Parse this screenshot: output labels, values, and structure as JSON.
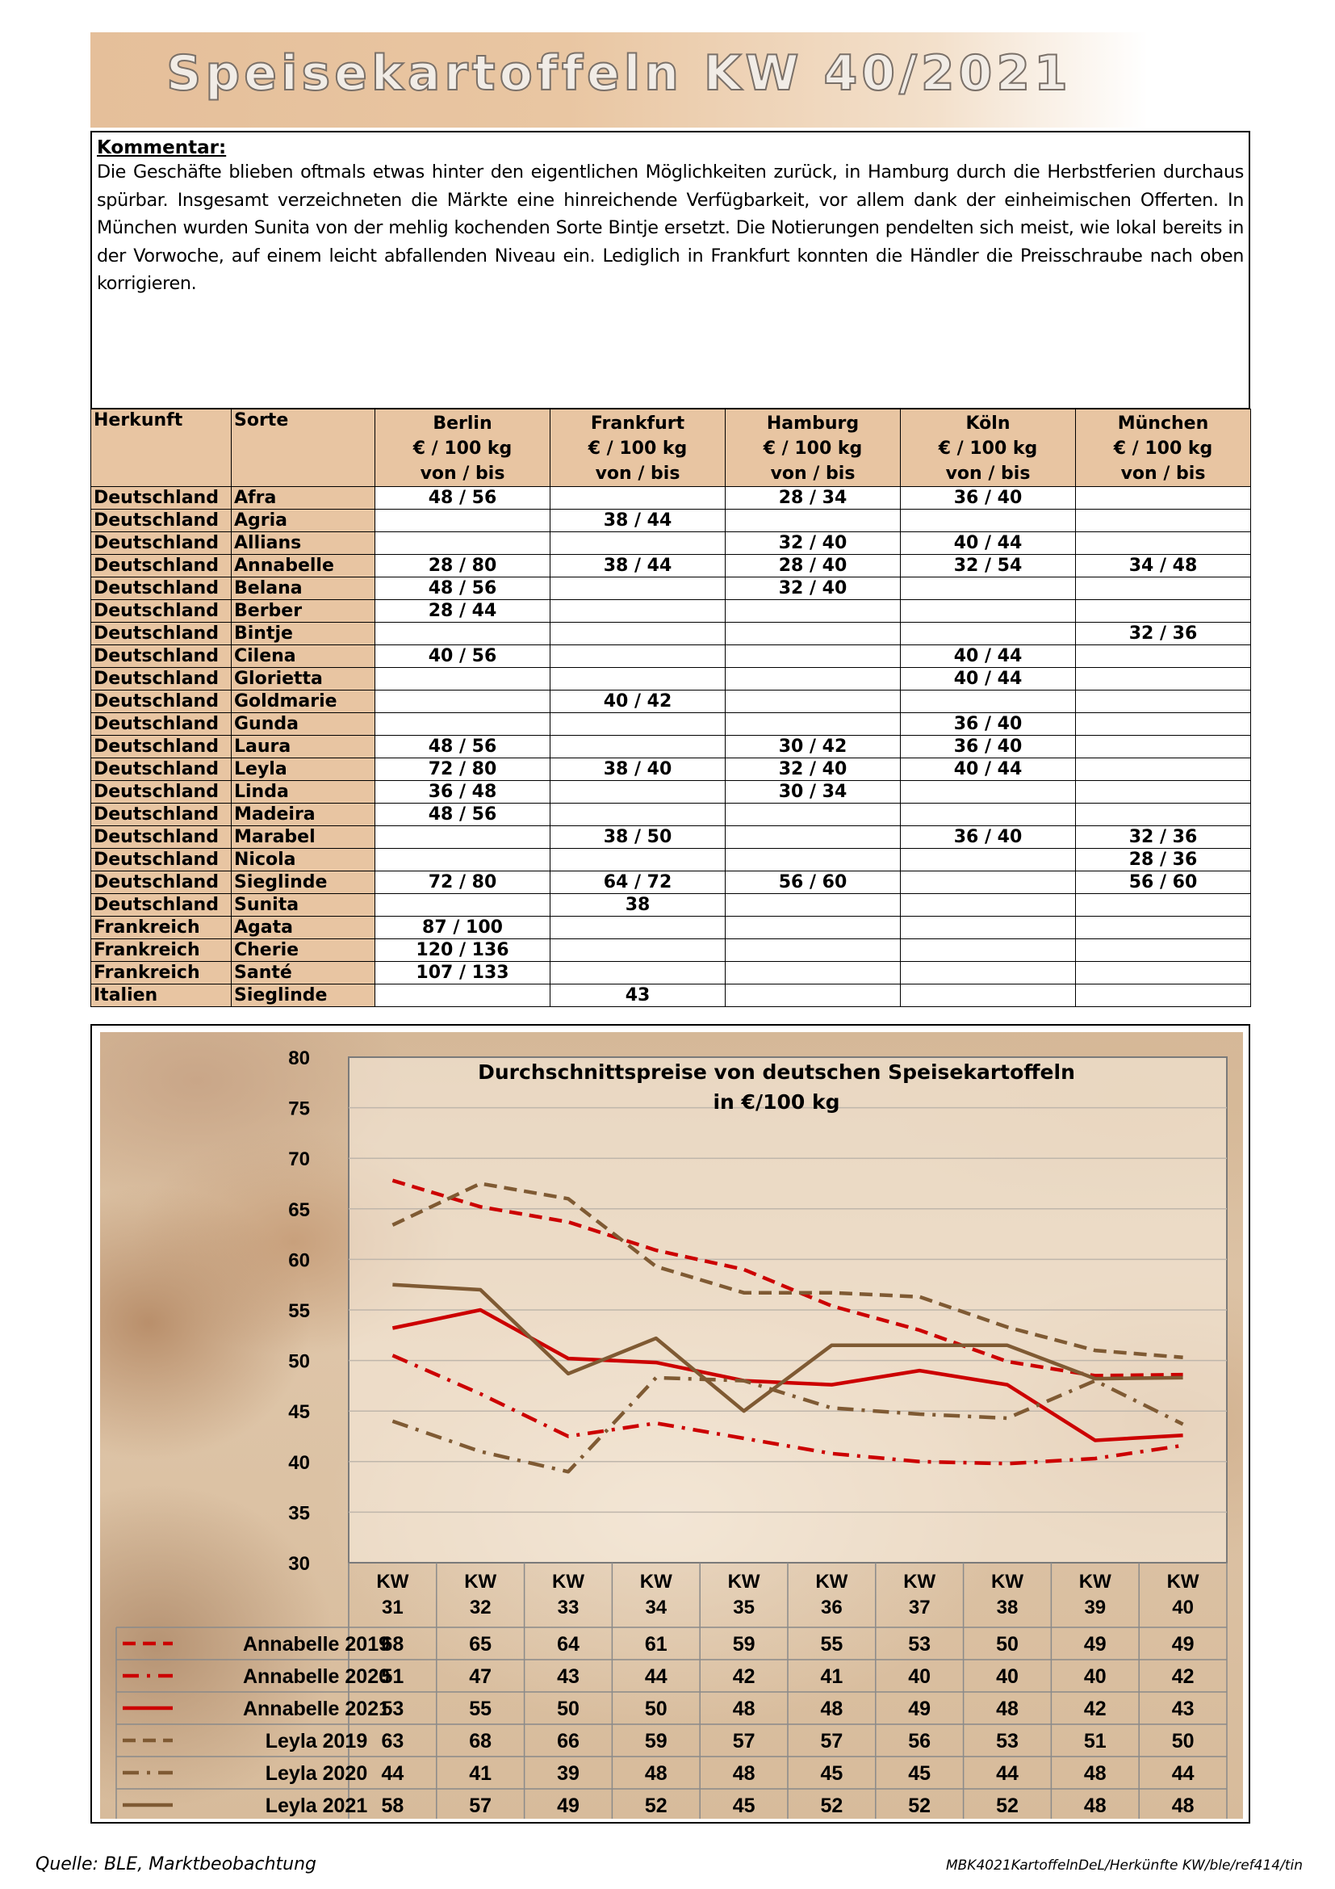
{
  "title": "Speisekartoffeln KW 40/2021",
  "comment": {
    "heading": "Kommentar:",
    "text": "Die Geschäfte blieben oftmals etwas hinter den eigentlichen Möglichkeiten zurück, in Hamburg durch die Herbstferien durchaus spürbar. Insgesamt verzeichneten die Märkte eine hinreichende Verfügbarkeit, vor allem dank der einheimischen Offerten. In München wurden Sunita von der mehlig kochenden Sorte Bintje ersetzt. Die Notierungen pendelten sich meist, wie lokal bereits in der Vorwoche, auf einem leicht abfallenden Niveau ein. Lediglich in Frankfurt konnten die Händler die Preisschraube nach oben korrigieren."
  },
  "table": {
    "header": {
      "herkunft": "Herkunft",
      "sorte": "Sorte",
      "cities": [
        "Berlin",
        "Frankfurt",
        "Hamburg",
        "Köln",
        "München"
      ],
      "unit": "€ / 100 kg",
      "range": "von  /  bis"
    },
    "rows": [
      {
        "herkunft": "Deutschland",
        "sorte": "Afra",
        "prices": [
          "48 / 56",
          "",
          "28 / 34",
          "36 / 40",
          ""
        ]
      },
      {
        "herkunft": "Deutschland",
        "sorte": "Agria",
        "prices": [
          "",
          "38 / 44",
          "",
          "",
          ""
        ]
      },
      {
        "herkunft": "Deutschland",
        "sorte": "Allians",
        "prices": [
          "",
          "",
          "32 / 40",
          "40 / 44",
          ""
        ]
      },
      {
        "herkunft": "Deutschland",
        "sorte": "Annabelle",
        "prices": [
          "28 / 80",
          "38 / 44",
          "28 / 40",
          "32 / 54",
          "34 / 48"
        ]
      },
      {
        "herkunft": "Deutschland",
        "sorte": "Belana",
        "prices": [
          "48 / 56",
          "",
          "32 / 40",
          "",
          ""
        ]
      },
      {
        "herkunft": "Deutschland",
        "sorte": "Berber",
        "prices": [
          "28 / 44",
          "",
          "",
          "",
          ""
        ]
      },
      {
        "herkunft": "Deutschland",
        "sorte": "Bintje",
        "prices": [
          "",
          "",
          "",
          "",
          "32 / 36"
        ]
      },
      {
        "herkunft": "Deutschland",
        "sorte": "Cilena",
        "prices": [
          "40 / 56",
          "",
          "",
          "40 / 44",
          ""
        ]
      },
      {
        "herkunft": "Deutschland",
        "sorte": "Glorietta",
        "prices": [
          "",
          "",
          "",
          "40 / 44",
          ""
        ]
      },
      {
        "herkunft": "Deutschland",
        "sorte": "Goldmarie",
        "prices": [
          "",
          "40 / 42",
          "",
          "",
          ""
        ]
      },
      {
        "herkunft": "Deutschland",
        "sorte": "Gunda",
        "prices": [
          "",
          "",
          "",
          "36 / 40",
          ""
        ]
      },
      {
        "herkunft": "Deutschland",
        "sorte": "Laura",
        "prices": [
          "48 / 56",
          "",
          "30 / 42",
          "36 / 40",
          ""
        ]
      },
      {
        "herkunft": "Deutschland",
        "sorte": "Leyla",
        "prices": [
          "72 / 80",
          "38 / 40",
          "32 / 40",
          "40 / 44",
          ""
        ]
      },
      {
        "herkunft": "Deutschland",
        "sorte": "Linda",
        "prices": [
          "36 / 48",
          "",
          "30 / 34",
          "",
          ""
        ]
      },
      {
        "herkunft": "Deutschland",
        "sorte": "Madeira",
        "prices": [
          "48 / 56",
          "",
          "",
          "",
          ""
        ]
      },
      {
        "herkunft": "Deutschland",
        "sorte": "Marabel",
        "prices": [
          "",
          "38 / 50",
          "",
          "36 / 40",
          "32 / 36"
        ]
      },
      {
        "herkunft": "Deutschland",
        "sorte": "Nicola",
        "prices": [
          "",
          "",
          "",
          "",
          "28 / 36"
        ]
      },
      {
        "herkunft": "Deutschland",
        "sorte": "Sieglinde",
        "prices": [
          "72 / 80",
          "64 / 72",
          "56 / 60",
          "",
          "56 / 60"
        ]
      },
      {
        "herkunft": "Deutschland",
        "sorte": "Sunita",
        "prices": [
          "",
          "38",
          "",
          "",
          ""
        ]
      },
      {
        "herkunft": "Frankreich",
        "sorte": "Agata",
        "prices": [
          "87 / 100",
          "",
          "",
          "",
          ""
        ]
      },
      {
        "herkunft": "Frankreich",
        "sorte": "Cherie",
        "prices": [
          "120 / 136",
          "",
          "",
          "",
          ""
        ]
      },
      {
        "herkunft": "Frankreich",
        "sorte": "Santé",
        "prices": [
          "107 / 133",
          "",
          "",
          "",
          ""
        ]
      },
      {
        "herkunft": "Italien",
        "sorte": "Sieglinde",
        "prices": [
          "",
          "43",
          "",
          "",
          ""
        ]
      }
    ]
  },
  "chart_data": {
    "type": "line",
    "title": "Durchschnittspreise von deutschen Speisekartoffeln",
    "subtitle": "in €/100 kg",
    "x_tick_top": "KW",
    "x": [
      "31",
      "32",
      "33",
      "34",
      "35",
      "36",
      "37",
      "38",
      "39",
      "40"
    ],
    "yticks": [
      "80",
      "75",
      "70",
      "65",
      "60",
      "55",
      "50",
      "45",
      "40",
      "35",
      "30"
    ],
    "ylim": [
      30,
      80
    ],
    "grid": true,
    "legend": "data table below chart",
    "series": [
      {
        "name": "Annabelle 2019",
        "color": "#cc0000",
        "style": "dashed",
        "values": [
          67.8,
          65.2,
          63.7,
          60.9,
          59.0,
          55.4,
          53.0,
          49.9,
          48.5,
          48.6
        ],
        "labels": [
          "68",
          "65",
          "64",
          "61",
          "59",
          "55",
          "53",
          "50",
          "49",
          "49"
        ]
      },
      {
        "name": "Annabelle 2020",
        "color": "#cc0000",
        "style": "dashdot",
        "values": [
          50.5,
          46.7,
          42.5,
          43.8,
          42.3,
          40.8,
          40.0,
          39.8,
          40.3,
          41.6
        ],
        "labels": [
          "51",
          "47",
          "43",
          "44",
          "42",
          "41",
          "40",
          "40",
          "40",
          "42"
        ]
      },
      {
        "name": "Annabelle 2021",
        "color": "#cc0000",
        "style": "solid",
        "values": [
          53.2,
          55.0,
          50.2,
          49.8,
          48.0,
          47.6,
          49.0,
          47.6,
          42.1,
          42.6
        ],
        "labels": [
          "53",
          "55",
          "50",
          "50",
          "48",
          "48",
          "49",
          "48",
          "42",
          "43"
        ]
      },
      {
        "name": "Leyla 2019",
        "color": "#7f5a33",
        "style": "dashed",
        "values": [
          63.4,
          67.5,
          66.0,
          59.3,
          56.7,
          56.7,
          56.3,
          53.3,
          51.0,
          50.3
        ],
        "labels": [
          "63",
          "68",
          "66",
          "59",
          "57",
          "57",
          "56",
          "53",
          "51",
          "50"
        ]
      },
      {
        "name": "Leyla 2020",
        "color": "#7f5a33",
        "style": "dashdot",
        "values": [
          44.0,
          41.0,
          39.0,
          48.3,
          48.0,
          45.3,
          44.7,
          44.3,
          48.0,
          43.7
        ],
        "labels": [
          "44",
          "41",
          "39",
          "48",
          "48",
          "45",
          "45",
          "44",
          "48",
          "44"
        ]
      },
      {
        "name": "Leyla 2021",
        "color": "#7f5a33",
        "style": "solid",
        "values": [
          57.5,
          57.0,
          48.7,
          52.2,
          45.0,
          51.5,
          51.5,
          51.5,
          48.2,
          48.3
        ],
        "labels": [
          "58",
          "57",
          "49",
          "52",
          "45",
          "52",
          "52",
          "52",
          "48",
          "48"
        ]
      }
    ]
  },
  "footer": {
    "source": "Quelle: BLE, Marktbeobachtung",
    "reference": "MBK4021KartoffelnDeL/Herkünfte KW/ble/ref414/tin"
  }
}
